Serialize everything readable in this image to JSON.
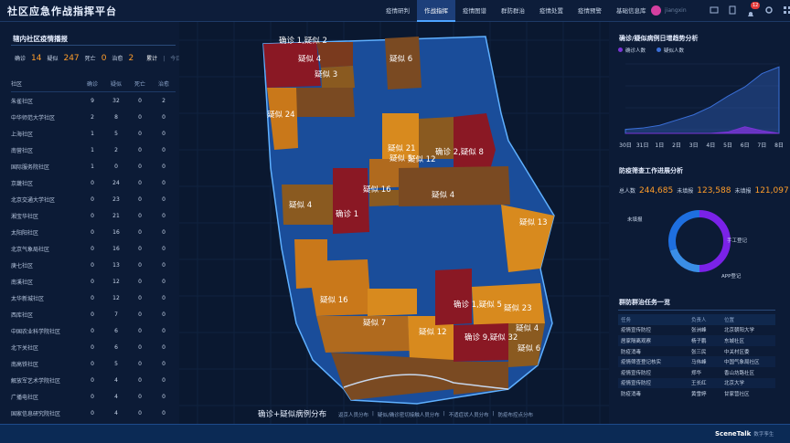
{
  "header": {
    "app_title": "社区应急作战指挥平台",
    "nav": [
      "疫情研判",
      "作战指挥",
      "疫情图谱",
      "群防群治",
      "疫情处置",
      "疫情预警",
      "基础信息库"
    ],
    "active_nav": 1,
    "user_name": "jiangxin",
    "notif_count": "12"
  },
  "left": {
    "title": "辖内社区疫情播报",
    "stats": {
      "confirmed_label": "确诊",
      "confirmed": "14",
      "suspected_label": "疑似",
      "suspected": "247",
      "dead_label": "死亡",
      "dead": "0",
      "cured_label": "治愈",
      "cured": "2",
      "tab_all": "累计",
      "tab_today": "今日"
    },
    "table_headers": [
      "社区",
      "确诊",
      "疑似",
      "死亡",
      "治愈"
    ],
    "rows": [
      [
        "朱雀社区",
        "9",
        "32",
        "0",
        "2"
      ],
      [
        "中华师范大学社区",
        "2",
        "8",
        "0",
        "0"
      ],
      [
        "上海社区",
        "1",
        "5",
        "0",
        "0"
      ],
      [
        "南营社区",
        "1",
        "2",
        "0",
        "0"
      ],
      [
        "国际服务院社区",
        "1",
        "0",
        "0",
        "0"
      ],
      [
        "京畿社区",
        "0",
        "24",
        "0",
        "0"
      ],
      [
        "北京交通大学社区",
        "0",
        "23",
        "0",
        "0"
      ],
      [
        "湘宝华社区",
        "0",
        "21",
        "0",
        "0"
      ],
      [
        "太阳阳社区",
        "0",
        "16",
        "0",
        "0"
      ],
      [
        "北京气象局社区",
        "0",
        "16",
        "0",
        "0"
      ],
      [
        "庚七社区",
        "0",
        "13",
        "0",
        "0"
      ],
      [
        "南溪社区",
        "0",
        "12",
        "0",
        "0"
      ],
      [
        "太华新城社区",
        "0",
        "12",
        "0",
        "0"
      ],
      [
        "西库社区",
        "0",
        "7",
        "0",
        "0"
      ],
      [
        "中国农业科学院社区",
        "0",
        "6",
        "0",
        "0"
      ],
      [
        "北下关社区",
        "0",
        "6",
        "0",
        "0"
      ],
      [
        "南高铁社区",
        "0",
        "5",
        "0",
        "0"
      ],
      [
        "解放军艺术学院社区",
        "0",
        "4",
        "0",
        "0"
      ],
      [
        "广播电社区",
        "0",
        "4",
        "0",
        "0"
      ],
      [
        "国家信息研究院社区",
        "0",
        "4",
        "0",
        "0"
      ]
    ]
  },
  "map": {
    "caption": "确诊+疑似病例分布",
    "legend": [
      "返京人员分布",
      "|",
      "疑似/确诊密切接触人员分布",
      "|",
      "不适症状人员分布",
      "|",
      "防疫布控点分布"
    ],
    "labels": [
      {
        "t": "确诊 1,疑似 2",
        "x": 109,
        "y": 23
      },
      {
        "t": "疑似 4",
        "x": 130,
        "y": 43
      },
      {
        "t": "疑似 6",
        "x": 230,
        "y": 43
      },
      {
        "t": "疑似 3",
        "x": 148,
        "y": 60
      },
      {
        "t": "疑似 24",
        "x": 96,
        "y": 104
      },
      {
        "t": "疑似 21",
        "x": 228,
        "y": 141
      },
      {
        "t": "疑似 5",
        "x": 230,
        "y": 152
      },
      {
        "t": "疑似 12",
        "x": 250,
        "y": 153
      },
      {
        "t": "确诊 2,疑似 8",
        "x": 280,
        "y": 145
      },
      {
        "t": "疑似 16",
        "x": 201,
        "y": 186
      },
      {
        "t": "疑似 4",
        "x": 276,
        "y": 192
      },
      {
        "t": "疑似 4",
        "x": 120,
        "y": 203
      },
      {
        "t": "确诊 1",
        "x": 171,
        "y": 213
      },
      {
        "t": "疑似 13",
        "x": 372,
        "y": 222
      },
      {
        "t": "疑似 16",
        "x": 154,
        "y": 307
      },
      {
        "t": "确诊 1,疑似 5",
        "x": 300,
        "y": 312
      },
      {
        "t": "疑似 23",
        "x": 355,
        "y": 316
      },
      {
        "t": "疑似 7",
        "x": 201,
        "y": 332
      },
      {
        "t": "疑似 12",
        "x": 262,
        "y": 342
      },
      {
        "t": "确诊 9,疑似 32",
        "x": 312,
        "y": 348
      },
      {
        "t": "疑似 4",
        "x": 368,
        "y": 338
      },
      {
        "t": "疑似 6",
        "x": 370,
        "y": 360
      }
    ]
  },
  "right": {
    "trend_title": "确诊/疑似病例日增趋势分析",
    "trend_legend": [
      "确诊人数",
      "疑似人数"
    ],
    "chart_data": {
      "type": "area",
      "categories": [
        "30日",
        "31日",
        "1日",
        "2日",
        "3日",
        "4日",
        "5日",
        "6日",
        "7日",
        "8日"
      ],
      "series": [
        {
          "name": "确诊人数",
          "values": [
            0,
            0,
            0,
            0,
            0,
            0,
            1,
            5,
            2,
            0
          ]
        },
        {
          "name": "疑似人数",
          "values": [
            3,
            4,
            6,
            10,
            14,
            20,
            28,
            35,
            45,
            50
          ]
        }
      ],
      "colors": {
        "confirmed": "#7a34d6",
        "suspected": "#3a6fd8"
      }
    },
    "progress_title": "防疫筛查工作进展分析",
    "progress_stats": {
      "total_label": "总人数",
      "total": "244,685",
      "unfilled_label": "未填报",
      "unfilled": "123,588",
      "filled_label": "未填报",
      "filled": "121,097"
    },
    "donut_labels": [
      "未填报",
      "手工登记",
      "APP登记"
    ],
    "donut_fractions": {
      "unfilled": 0.5,
      "manual": 0.2,
      "app": 0.3
    },
    "tasks_title": "群防群治任务一览",
    "task_headers": [
      "任务",
      "负责人",
      "位置"
    ],
    "tasks": [
      [
        "疫情宣传防控",
        "张洲峰",
        "北京朝阳大学"
      ],
      [
        "居家隔离观察",
        "杨子鹏",
        "东城社区"
      ],
      [
        "防疫消毒",
        "张三民",
        "中关村区委"
      ],
      [
        "疫情筛查登记核实",
        "马伟峰",
        "中国气象局社区"
      ],
      [
        "疫情宣传防控",
        "郑华",
        "香山坊路社区"
      ],
      [
        "疫情宣传防控",
        "王长红",
        "北京大学"
      ],
      [
        "防疫消毒",
        "黄雪婷",
        "甘家营社区"
      ]
    ]
  },
  "footer": {
    "brand": "SceneTalk",
    "brand_sub": "数字孪生"
  }
}
